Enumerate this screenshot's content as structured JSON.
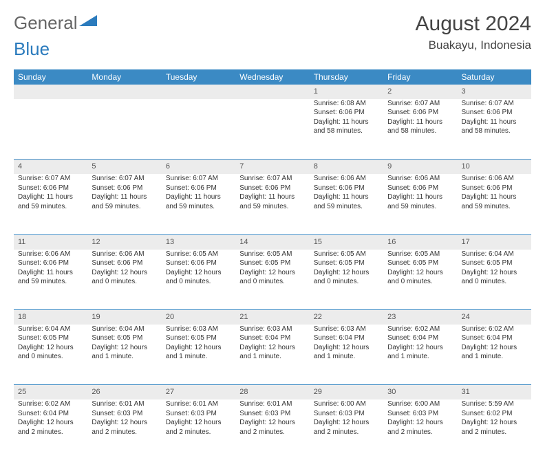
{
  "brand": {
    "part1": "General",
    "part2": "Blue"
  },
  "title": "August 2024",
  "location": "Buakayu, Indonesia",
  "colors": {
    "header_bg": "#3b8ac4",
    "daynum_bg": "#ececec",
    "row_divider": "#3b8ac4",
    "text": "#333333",
    "brand_gray": "#666666",
    "brand_blue": "#2b7bbd"
  },
  "calendar": {
    "type": "calendar-table",
    "day_headers": [
      "Sunday",
      "Monday",
      "Tuesday",
      "Wednesday",
      "Thursday",
      "Friday",
      "Saturday"
    ],
    "weeks": [
      [
        null,
        null,
        null,
        null,
        {
          "n": "1",
          "sr": "Sunrise: 6:08 AM",
          "ss": "Sunset: 6:06 PM",
          "dl": "Daylight: 11 hours and 58 minutes."
        },
        {
          "n": "2",
          "sr": "Sunrise: 6:07 AM",
          "ss": "Sunset: 6:06 PM",
          "dl": "Daylight: 11 hours and 58 minutes."
        },
        {
          "n": "3",
          "sr": "Sunrise: 6:07 AM",
          "ss": "Sunset: 6:06 PM",
          "dl": "Daylight: 11 hours and 58 minutes."
        }
      ],
      [
        {
          "n": "4",
          "sr": "Sunrise: 6:07 AM",
          "ss": "Sunset: 6:06 PM",
          "dl": "Daylight: 11 hours and 59 minutes."
        },
        {
          "n": "5",
          "sr": "Sunrise: 6:07 AM",
          "ss": "Sunset: 6:06 PM",
          "dl": "Daylight: 11 hours and 59 minutes."
        },
        {
          "n": "6",
          "sr": "Sunrise: 6:07 AM",
          "ss": "Sunset: 6:06 PM",
          "dl": "Daylight: 11 hours and 59 minutes."
        },
        {
          "n": "7",
          "sr": "Sunrise: 6:07 AM",
          "ss": "Sunset: 6:06 PM",
          "dl": "Daylight: 11 hours and 59 minutes."
        },
        {
          "n": "8",
          "sr": "Sunrise: 6:06 AM",
          "ss": "Sunset: 6:06 PM",
          "dl": "Daylight: 11 hours and 59 minutes."
        },
        {
          "n": "9",
          "sr": "Sunrise: 6:06 AM",
          "ss": "Sunset: 6:06 PM",
          "dl": "Daylight: 11 hours and 59 minutes."
        },
        {
          "n": "10",
          "sr": "Sunrise: 6:06 AM",
          "ss": "Sunset: 6:06 PM",
          "dl": "Daylight: 11 hours and 59 minutes."
        }
      ],
      [
        {
          "n": "11",
          "sr": "Sunrise: 6:06 AM",
          "ss": "Sunset: 6:06 PM",
          "dl": "Daylight: 11 hours and 59 minutes."
        },
        {
          "n": "12",
          "sr": "Sunrise: 6:06 AM",
          "ss": "Sunset: 6:06 PM",
          "dl": "Daylight: 12 hours and 0 minutes."
        },
        {
          "n": "13",
          "sr": "Sunrise: 6:05 AM",
          "ss": "Sunset: 6:06 PM",
          "dl": "Daylight: 12 hours and 0 minutes."
        },
        {
          "n": "14",
          "sr": "Sunrise: 6:05 AM",
          "ss": "Sunset: 6:05 PM",
          "dl": "Daylight: 12 hours and 0 minutes."
        },
        {
          "n": "15",
          "sr": "Sunrise: 6:05 AM",
          "ss": "Sunset: 6:05 PM",
          "dl": "Daylight: 12 hours and 0 minutes."
        },
        {
          "n": "16",
          "sr": "Sunrise: 6:05 AM",
          "ss": "Sunset: 6:05 PM",
          "dl": "Daylight: 12 hours and 0 minutes."
        },
        {
          "n": "17",
          "sr": "Sunrise: 6:04 AM",
          "ss": "Sunset: 6:05 PM",
          "dl": "Daylight: 12 hours and 0 minutes."
        }
      ],
      [
        {
          "n": "18",
          "sr": "Sunrise: 6:04 AM",
          "ss": "Sunset: 6:05 PM",
          "dl": "Daylight: 12 hours and 0 minutes."
        },
        {
          "n": "19",
          "sr": "Sunrise: 6:04 AM",
          "ss": "Sunset: 6:05 PM",
          "dl": "Daylight: 12 hours and 1 minute."
        },
        {
          "n": "20",
          "sr": "Sunrise: 6:03 AM",
          "ss": "Sunset: 6:05 PM",
          "dl": "Daylight: 12 hours and 1 minute."
        },
        {
          "n": "21",
          "sr": "Sunrise: 6:03 AM",
          "ss": "Sunset: 6:04 PM",
          "dl": "Daylight: 12 hours and 1 minute."
        },
        {
          "n": "22",
          "sr": "Sunrise: 6:03 AM",
          "ss": "Sunset: 6:04 PM",
          "dl": "Daylight: 12 hours and 1 minute."
        },
        {
          "n": "23",
          "sr": "Sunrise: 6:02 AM",
          "ss": "Sunset: 6:04 PM",
          "dl": "Daylight: 12 hours and 1 minute."
        },
        {
          "n": "24",
          "sr": "Sunrise: 6:02 AM",
          "ss": "Sunset: 6:04 PM",
          "dl": "Daylight: 12 hours and 1 minute."
        }
      ],
      [
        {
          "n": "25",
          "sr": "Sunrise: 6:02 AM",
          "ss": "Sunset: 6:04 PM",
          "dl": "Daylight: 12 hours and 2 minutes."
        },
        {
          "n": "26",
          "sr": "Sunrise: 6:01 AM",
          "ss": "Sunset: 6:03 PM",
          "dl": "Daylight: 12 hours and 2 minutes."
        },
        {
          "n": "27",
          "sr": "Sunrise: 6:01 AM",
          "ss": "Sunset: 6:03 PM",
          "dl": "Daylight: 12 hours and 2 minutes."
        },
        {
          "n": "28",
          "sr": "Sunrise: 6:01 AM",
          "ss": "Sunset: 6:03 PM",
          "dl": "Daylight: 12 hours and 2 minutes."
        },
        {
          "n": "29",
          "sr": "Sunrise: 6:00 AM",
          "ss": "Sunset: 6:03 PM",
          "dl": "Daylight: 12 hours and 2 minutes."
        },
        {
          "n": "30",
          "sr": "Sunrise: 6:00 AM",
          "ss": "Sunset: 6:03 PM",
          "dl": "Daylight: 12 hours and 2 minutes."
        },
        {
          "n": "31",
          "sr": "Sunrise: 5:59 AM",
          "ss": "Sunset: 6:02 PM",
          "dl": "Daylight: 12 hours and 2 minutes."
        }
      ]
    ]
  }
}
